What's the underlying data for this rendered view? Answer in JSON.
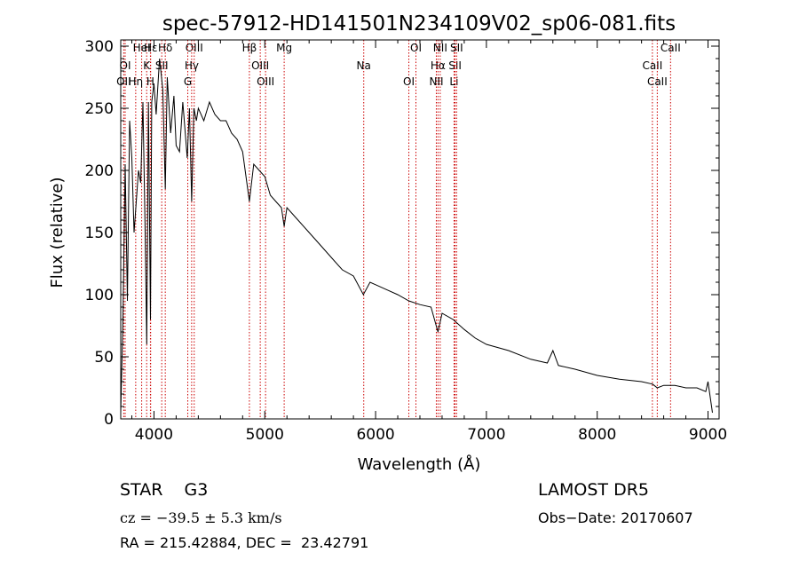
{
  "chart_data": {
    "type": "line",
    "title": "spec-57912-HD141501N234109V02_sp06-081.fits",
    "xlabel": "Wavelength (Å)",
    "ylabel": "Flux (relative)",
    "xlim": [
      3700,
      9100
    ],
    "ylim": [
      0,
      305
    ],
    "x_ticks": [
      4000,
      5000,
      6000,
      7000,
      8000,
      9000
    ],
    "y_ticks": [
      0,
      50,
      100,
      150,
      200,
      250,
      300
    ],
    "grid": false,
    "series": [
      {
        "x": [
          3700,
          3720,
          3740,
          3760,
          3780,
          3800,
          3820,
          3840,
          3860,
          3880,
          3900,
          3920,
          3935,
          3950,
          3968,
          3980,
          4000,
          4020,
          4050,
          4080,
          4102,
          4120,
          4150,
          4180,
          4200,
          4230,
          4260,
          4300,
          4320,
          4340,
          4360,
          4383,
          4400,
          4450,
          4500,
          4550,
          4600,
          4650,
          4700,
          4750,
          4800,
          4861,
          4900,
          4950,
          5000,
          5050,
          5100,
          5150,
          5175,
          5200,
          5300,
          5400,
          5500,
          5600,
          5700,
          5800,
          5890,
          5950,
          6000,
          6100,
          6200,
          6300,
          6400,
          6500,
          6563,
          6600,
          6700,
          6800,
          6900,
          7000,
          7200,
          7400,
          7550,
          7600,
          7650,
          7800,
          8000,
          8200,
          8400,
          8500,
          8542,
          8600,
          8700,
          8800,
          8900,
          8980,
          9000,
          9040
        ],
        "y": [
          5,
          80,
          205,
          95,
          240,
          210,
          150,
          175,
          200,
          190,
          255,
          150,
          60,
          255,
          80,
          255,
          270,
          245,
          290,
          265,
          185,
          275,
          230,
          260,
          220,
          215,
          255,
          210,
          250,
          175,
          250,
          240,
          250,
          240,
          255,
          245,
          240,
          240,
          230,
          225,
          215,
          175,
          205,
          200,
          195,
          180,
          175,
          170,
          155,
          170,
          160,
          150,
          140,
          130,
          120,
          115,
          100,
          110,
          108,
          104,
          100,
          95,
          92,
          90,
          70,
          85,
          80,
          72,
          65,
          60,
          55,
          48,
          45,
          55,
          43,
          40,
          35,
          32,
          30,
          28,
          25,
          27,
          27,
          25,
          25,
          22,
          30,
          5
        ]
      }
    ],
    "line_markers": [
      {
        "label": "Hδ",
        "x": 4102
      },
      {
        "label": "K",
        "x": 3934
      },
      {
        "label": "H",
        "x": 3968
      },
      {
        "label": "Hε",
        "x": 3970
      },
      {
        "label": "OI",
        "x": 3740
      },
      {
        "label": "OII",
        "x": 3727
      },
      {
        "label": "HeI",
        "x": 3889
      },
      {
        "label": "SII",
        "x": 4070
      },
      {
        "label": "Hη",
        "x": 3835
      },
      {
        "label": "OIII",
        "x": 4363
      },
      {
        "label": "Hγ",
        "x": 4340
      },
      {
        "label": "G",
        "x": 4305
      },
      {
        "label": "Hβ",
        "x": 4861
      },
      {
        "label": "OIII",
        "x": 4959
      },
      {
        "label": "OIII",
        "x": 5007
      },
      {
        "label": "Mg",
        "x": 5175
      },
      {
        "label": "Na",
        "x": 5893
      },
      {
        "label": "OI",
        "x": 6300
      },
      {
        "label": "OI",
        "x": 6364
      },
      {
        "label": "Hα",
        "x": 6563
      },
      {
        "label": "NII",
        "x": 6548
      },
      {
        "label": "NII",
        "x": 6583
      },
      {
        "label": "SII",
        "x": 6717
      },
      {
        "label": "Li",
        "x": 6708
      },
      {
        "label": "SII",
        "x": 6731
      },
      {
        "label": "CaII",
        "x": 8498
      },
      {
        "label": "CaII",
        "x": 8542
      },
      {
        "label": "CaII",
        "x": 8662
      }
    ],
    "colors": {
      "spectrum": "#000000",
      "markers": "#cc0000"
    }
  },
  "footer": {
    "left_line1": "STAR    G3",
    "left_line2": "cz = −39.5 ± 5.3 km/s",
    "left_line3": "RA = 215.42884, DEC =  23.42791",
    "right_line1": "LAMOST DR5",
    "right_line2": "Obs−Date: 20170607"
  }
}
